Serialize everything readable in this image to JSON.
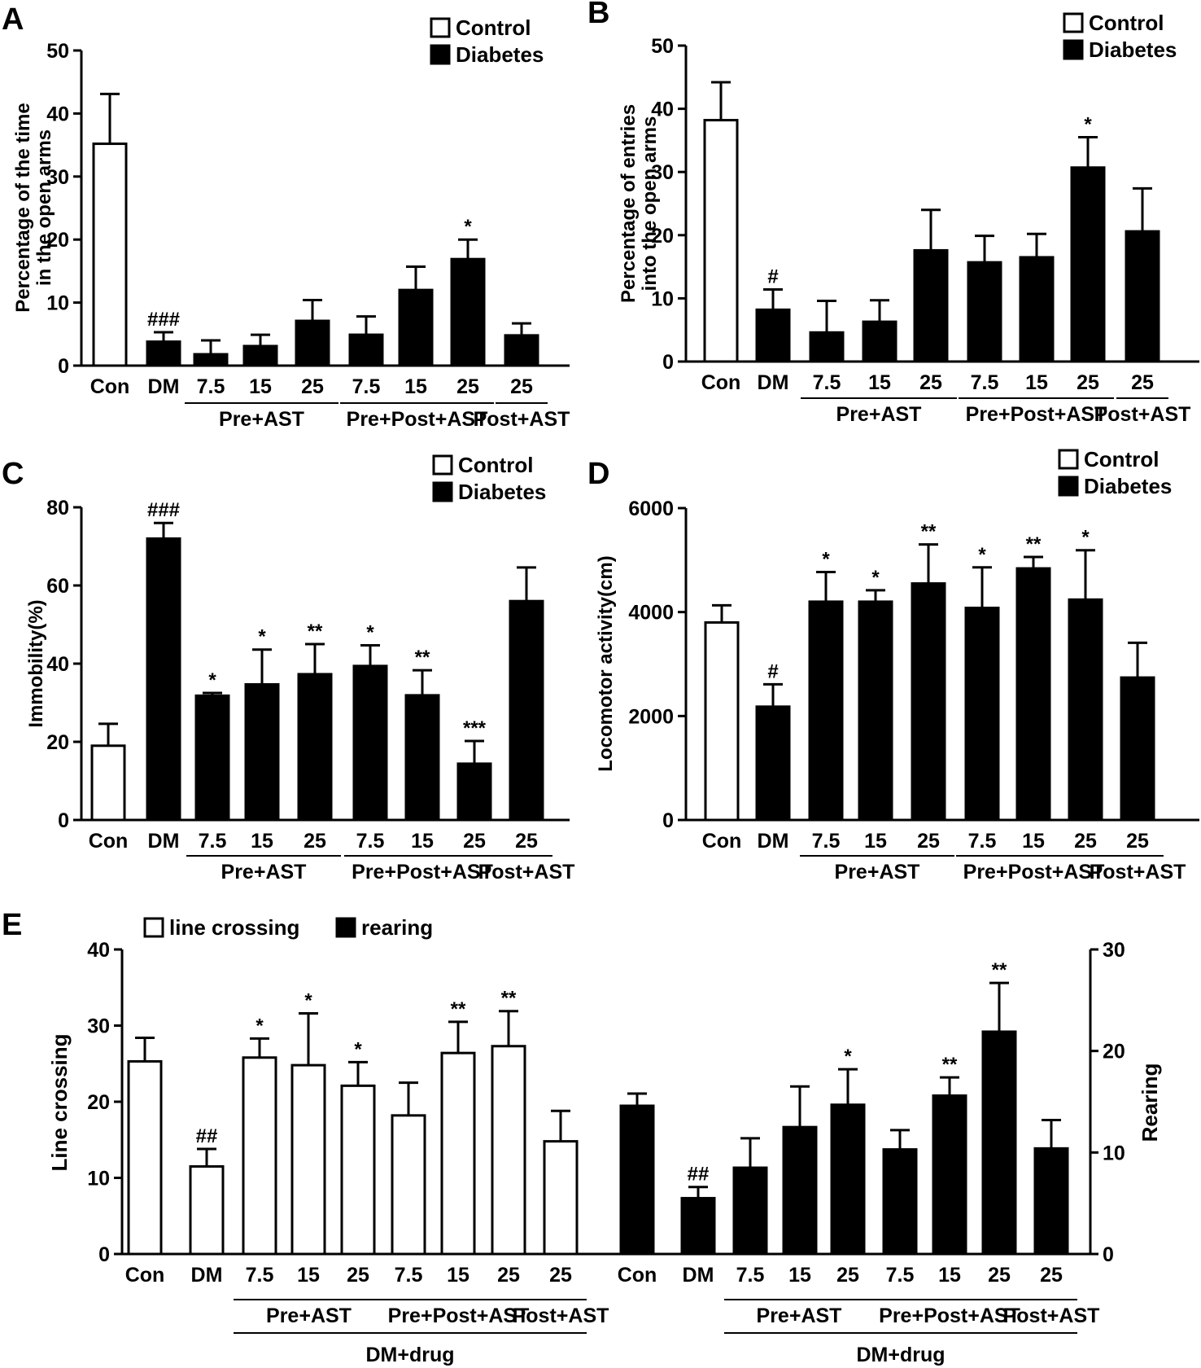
{
  "chart_data": [
    {
      "panel_label": "A",
      "type": "bar",
      "ylabel_lines": [
        "Percentage of the time",
        "in the open arms"
      ],
      "ylim": [
        0,
        50
      ],
      "yticks": [
        0,
        10,
        20,
        30,
        40,
        50
      ],
      "legend": [
        {
          "label": "Control",
          "fill": "#ffffff"
        },
        {
          "label": "Diabetes",
          "fill": "#000000"
        }
      ],
      "categories": [
        "Con",
        "DM",
        "7.5",
        "15",
        "25",
        "7.5",
        "15",
        "25",
        "25"
      ],
      "values": [
        35.2,
        3.8,
        1.8,
        3.1,
        7.1,
        4.9,
        12.0,
        16.9,
        4.8
      ],
      "errors": [
        7.9,
        1.5,
        2.2,
        1.8,
        3.3,
        2.9,
        3.7,
        3.1,
        1.9
      ],
      "fills": [
        "#ffffff",
        "#000000",
        "#000000",
        "#000000",
        "#000000",
        "#000000",
        "#000000",
        "#000000",
        "#000000"
      ],
      "annotations": [
        "",
        "###",
        "",
        "",
        "",
        "",
        "",
        "*",
        ""
      ],
      "groups": [
        {
          "label": "Pre+AST",
          "start": 2,
          "end": 4
        },
        {
          "label": "Pre+Post+AST",
          "start": 5,
          "end": 7
        },
        {
          "label": "Post+AST",
          "start": 8,
          "end": 8
        }
      ]
    },
    {
      "panel_label": "B",
      "type": "bar",
      "ylabel_lines": [
        "Percentage of entries",
        "into the open arms"
      ],
      "ylim": [
        0,
        50
      ],
      "yticks": [
        0,
        10,
        20,
        30,
        40,
        50
      ],
      "legend": [
        {
          "label": "Control",
          "fill": "#ffffff"
        },
        {
          "label": "Diabetes",
          "fill": "#000000"
        }
      ],
      "categories": [
        "Con",
        "DM",
        "7.5",
        "15",
        "25",
        "7.5",
        "15",
        "25",
        "25"
      ],
      "values": [
        38.2,
        8.2,
        4.6,
        6.3,
        17.6,
        15.7,
        16.5,
        30.7,
        20.6
      ],
      "errors": [
        6.0,
        3.2,
        5.0,
        3.4,
        6.4,
        4.2,
        3.7,
        4.8,
        6.8
      ],
      "fills": [
        "#ffffff",
        "#000000",
        "#000000",
        "#000000",
        "#000000",
        "#000000",
        "#000000",
        "#000000",
        "#000000"
      ],
      "annotations": [
        "",
        "#",
        "",
        "",
        "",
        "",
        "",
        "*",
        ""
      ],
      "groups": [
        {
          "label": "Pre+AST",
          "start": 2,
          "end": 4
        },
        {
          "label": "Pre+Post+AST",
          "start": 5,
          "end": 7
        },
        {
          "label": "Post+AST",
          "start": 8,
          "end": 8
        }
      ]
    },
    {
      "panel_label": "C",
      "type": "bar",
      "ylabel_lines": [
        "Immobility(%)"
      ],
      "ylim": [
        0,
        80
      ],
      "yticks": [
        0,
        20,
        40,
        60,
        80
      ],
      "legend": [
        {
          "label": "Control",
          "fill": "#ffffff"
        },
        {
          "label": "Diabetes",
          "fill": "#000000"
        }
      ],
      "categories": [
        "Con",
        "DM",
        "7.5",
        "15",
        "25",
        "7.5",
        "15",
        "25",
        "25"
      ],
      "values": [
        19.0,
        72.0,
        31.8,
        34.7,
        37.3,
        39.4,
        31.9,
        14.4,
        56.0
      ],
      "errors": [
        5.6,
        4.0,
        0.7,
        8.9,
        7.7,
        5.3,
        6.4,
        5.8,
        8.6
      ],
      "fills": [
        "#ffffff",
        "#000000",
        "#000000",
        "#000000",
        "#000000",
        "#000000",
        "#000000",
        "#000000",
        "#000000"
      ],
      "annotations": [
        "",
        "###",
        "*",
        "*",
        "**",
        "*",
        "**",
        "***",
        ""
      ],
      "groups": [
        {
          "label": "Pre+AST",
          "start": 2,
          "end": 4
        },
        {
          "label": "Pre+Post+AST",
          "start": 5,
          "end": 7
        },
        {
          "label": "Post+AST",
          "start": 8,
          "end": 8
        }
      ]
    },
    {
      "panel_label": "D",
      "type": "bar",
      "ylabel_lines": [
        "Locomotor activity(cm)"
      ],
      "ylim": [
        0,
        6000
      ],
      "yticks": [
        0,
        2000,
        4000,
        6000
      ],
      "legend": [
        {
          "label": "Control",
          "fill": "#ffffff"
        },
        {
          "label": "Diabetes",
          "fill": "#000000"
        }
      ],
      "categories": [
        "Con",
        "DM",
        "7.5",
        "15",
        "25",
        "7.5",
        "15",
        "25",
        "25"
      ],
      "values": [
        3800,
        2180,
        4200,
        4200,
        4550,
        4080,
        4840,
        4240,
        2740
      ],
      "errors": [
        330,
        430,
        570,
        220,
        750,
        780,
        220,
        950,
        670
      ],
      "fills": [
        "#ffffff",
        "#000000",
        "#000000",
        "#000000",
        "#000000",
        "#000000",
        "#000000",
        "#000000",
        "#000000"
      ],
      "annotations": [
        "",
        "#",
        "*",
        "*",
        "**",
        "*",
        "**",
        "*",
        ""
      ],
      "groups": [
        {
          "label": "Pre+AST",
          "start": 2,
          "end": 4
        },
        {
          "label": "Pre+Post+AST",
          "start": 5,
          "end": 7
        },
        {
          "label": "Post+AST",
          "start": 8,
          "end": 8
        }
      ]
    },
    {
      "panel_label": "E",
      "type": "bar",
      "ylabel": "Line crossing",
      "ylabel_right": "Rearing",
      "ylim": [
        0,
        40
      ],
      "ylim_right": [
        0,
        30
      ],
      "yticks": [
        0,
        10,
        20,
        30,
        40
      ],
      "yticks_right": [
        0,
        10,
        20,
        30
      ],
      "legend": [
        {
          "label": "line crossing",
          "fill": "#ffffff"
        },
        {
          "label": "rearing",
          "fill": "#000000"
        }
      ],
      "series": [
        {
          "name": "line crossing",
          "axis": "left",
          "fill": "#ffffff",
          "categories": [
            "Con",
            "DM",
            "7.5",
            "15",
            "25",
            "7.5",
            "15",
            "25",
            "25"
          ],
          "values": [
            25.3,
            11.5,
            25.8,
            24.8,
            22.1,
            18.2,
            26.4,
            27.3,
            14.8
          ],
          "errors": [
            3.1,
            2.3,
            2.5,
            6.8,
            3.1,
            4.3,
            4.1,
            4.6,
            4.0
          ],
          "annotations": [
            "",
            "##",
            "*",
            "*",
            "*",
            "",
            "**",
            "**",
            ""
          ],
          "groups": [
            {
              "label": "Pre+AST",
              "start": 2,
              "end": 4
            },
            {
              "label": "Pre+Post+AST",
              "start": 5,
              "end": 7
            },
            {
              "label": "Post+AST",
              "start": 8,
              "end": 8
            }
          ],
          "super_group": "DM+drug"
        },
        {
          "name": "rearing",
          "axis": "right",
          "fill": "#000000",
          "categories": [
            "Con",
            "DM",
            "7.5",
            "15",
            "25",
            "7.5",
            "15",
            "25",
            "25"
          ],
          "values": [
            14.6,
            5.5,
            8.5,
            12.5,
            14.7,
            10.3,
            15.6,
            21.9,
            10.4
          ],
          "errors": [
            1.2,
            1.1,
            2.9,
            4.0,
            3.5,
            1.9,
            1.8,
            4.8,
            2.8
          ],
          "annotations": [
            "",
            "##",
            "",
            "",
            "*",
            "",
            "**",
            "**",
            ""
          ],
          "groups": [
            {
              "label": "Pre+AST",
              "start": 2,
              "end": 4
            },
            {
              "label": "Pre+Post+AST",
              "start": 5,
              "end": 7
            },
            {
              "label": "Post+AST",
              "start": 8,
              "end": 8
            }
          ],
          "super_group": "DM+drug"
        }
      ]
    }
  ]
}
